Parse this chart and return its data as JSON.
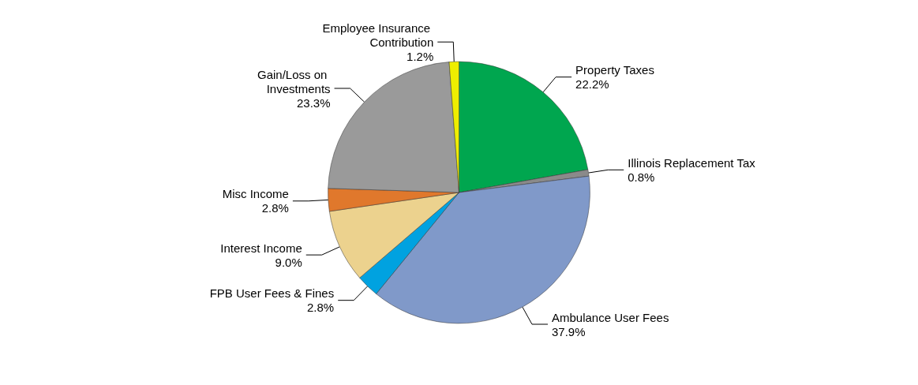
{
  "chart_data": {
    "type": "pie",
    "categories": [
      "Property Taxes",
      "Illinois Replacement Tax",
      "Ambulance User Fees",
      "FPB User Fees & Fines",
      "Interest Income",
      "Misc Income",
      "Gain/Loss on Investments",
      "Employee Insurance Contribution"
    ],
    "values": [
      22.2,
      0.8,
      37.9,
      2.8,
      9.0,
      2.8,
      23.3,
      1.2
    ],
    "value_labels": [
      "22.2%",
      "0.8%",
      "37.9%",
      "2.8%",
      "9.0%",
      "2.8%",
      "23.3%",
      "1.2%"
    ],
    "colors": [
      "#00a64f",
      "#8a8a8a",
      "#8099c9",
      "#00a2e0",
      "#ecd28e",
      "#e0782c",
      "#9a9a9a",
      "#eeee00"
    ],
    "legend": false
  }
}
